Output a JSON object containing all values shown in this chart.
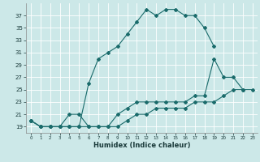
{
  "xlabel": "Humidex (Indice chaleur)",
  "bg_color": "#cce8e8",
  "grid_color": "#ffffff",
  "line_color": "#1a6b6b",
  "line1_x": [
    0,
    1,
    2,
    3,
    4,
    5,
    6,
    7,
    8,
    9,
    10,
    11,
    12,
    13,
    14,
    15,
    16,
    17,
    18,
    19
  ],
  "line1_y": [
    20,
    19,
    19,
    19,
    19,
    19,
    26,
    30,
    31,
    32,
    34,
    36,
    38,
    37,
    38,
    38,
    37,
    37,
    35,
    32
  ],
  "line2_x": [
    0,
    1,
    2,
    3,
    4,
    5,
    6,
    7,
    8,
    9,
    10,
    11,
    12,
    13,
    14,
    15,
    16,
    17,
    18,
    19,
    20,
    21,
    22
  ],
  "line2_y": [
    20,
    19,
    19,
    19,
    21,
    21,
    19,
    19,
    19,
    21,
    22,
    23,
    23,
    23,
    23,
    23,
    23,
    24,
    24,
    30,
    27,
    27,
    25
  ],
  "line3_x": [
    0,
    1,
    2,
    3,
    4,
    5,
    6,
    7,
    8,
    9,
    10,
    11,
    12,
    13,
    14,
    15,
    16,
    17,
    18,
    19,
    20,
    21,
    22,
    23
  ],
  "line3_y": [
    20,
    19,
    19,
    19,
    19,
    19,
    19,
    19,
    19,
    19,
    20,
    21,
    21,
    22,
    22,
    22,
    22,
    23,
    23,
    23,
    24,
    25,
    25,
    25
  ],
  "ylim": [
    18,
    39
  ],
  "xlim": [
    -0.5,
    23.5
  ],
  "yticks": [
    19,
    21,
    23,
    25,
    27,
    29,
    31,
    33,
    35,
    37
  ],
  "xticks": [
    0,
    1,
    2,
    3,
    4,
    5,
    6,
    7,
    8,
    9,
    10,
    11,
    12,
    13,
    14,
    15,
    16,
    17,
    18,
    19,
    20,
    21,
    22,
    23
  ],
  "xlabel_fontsize": 6,
  "tick_fontsize": 5
}
